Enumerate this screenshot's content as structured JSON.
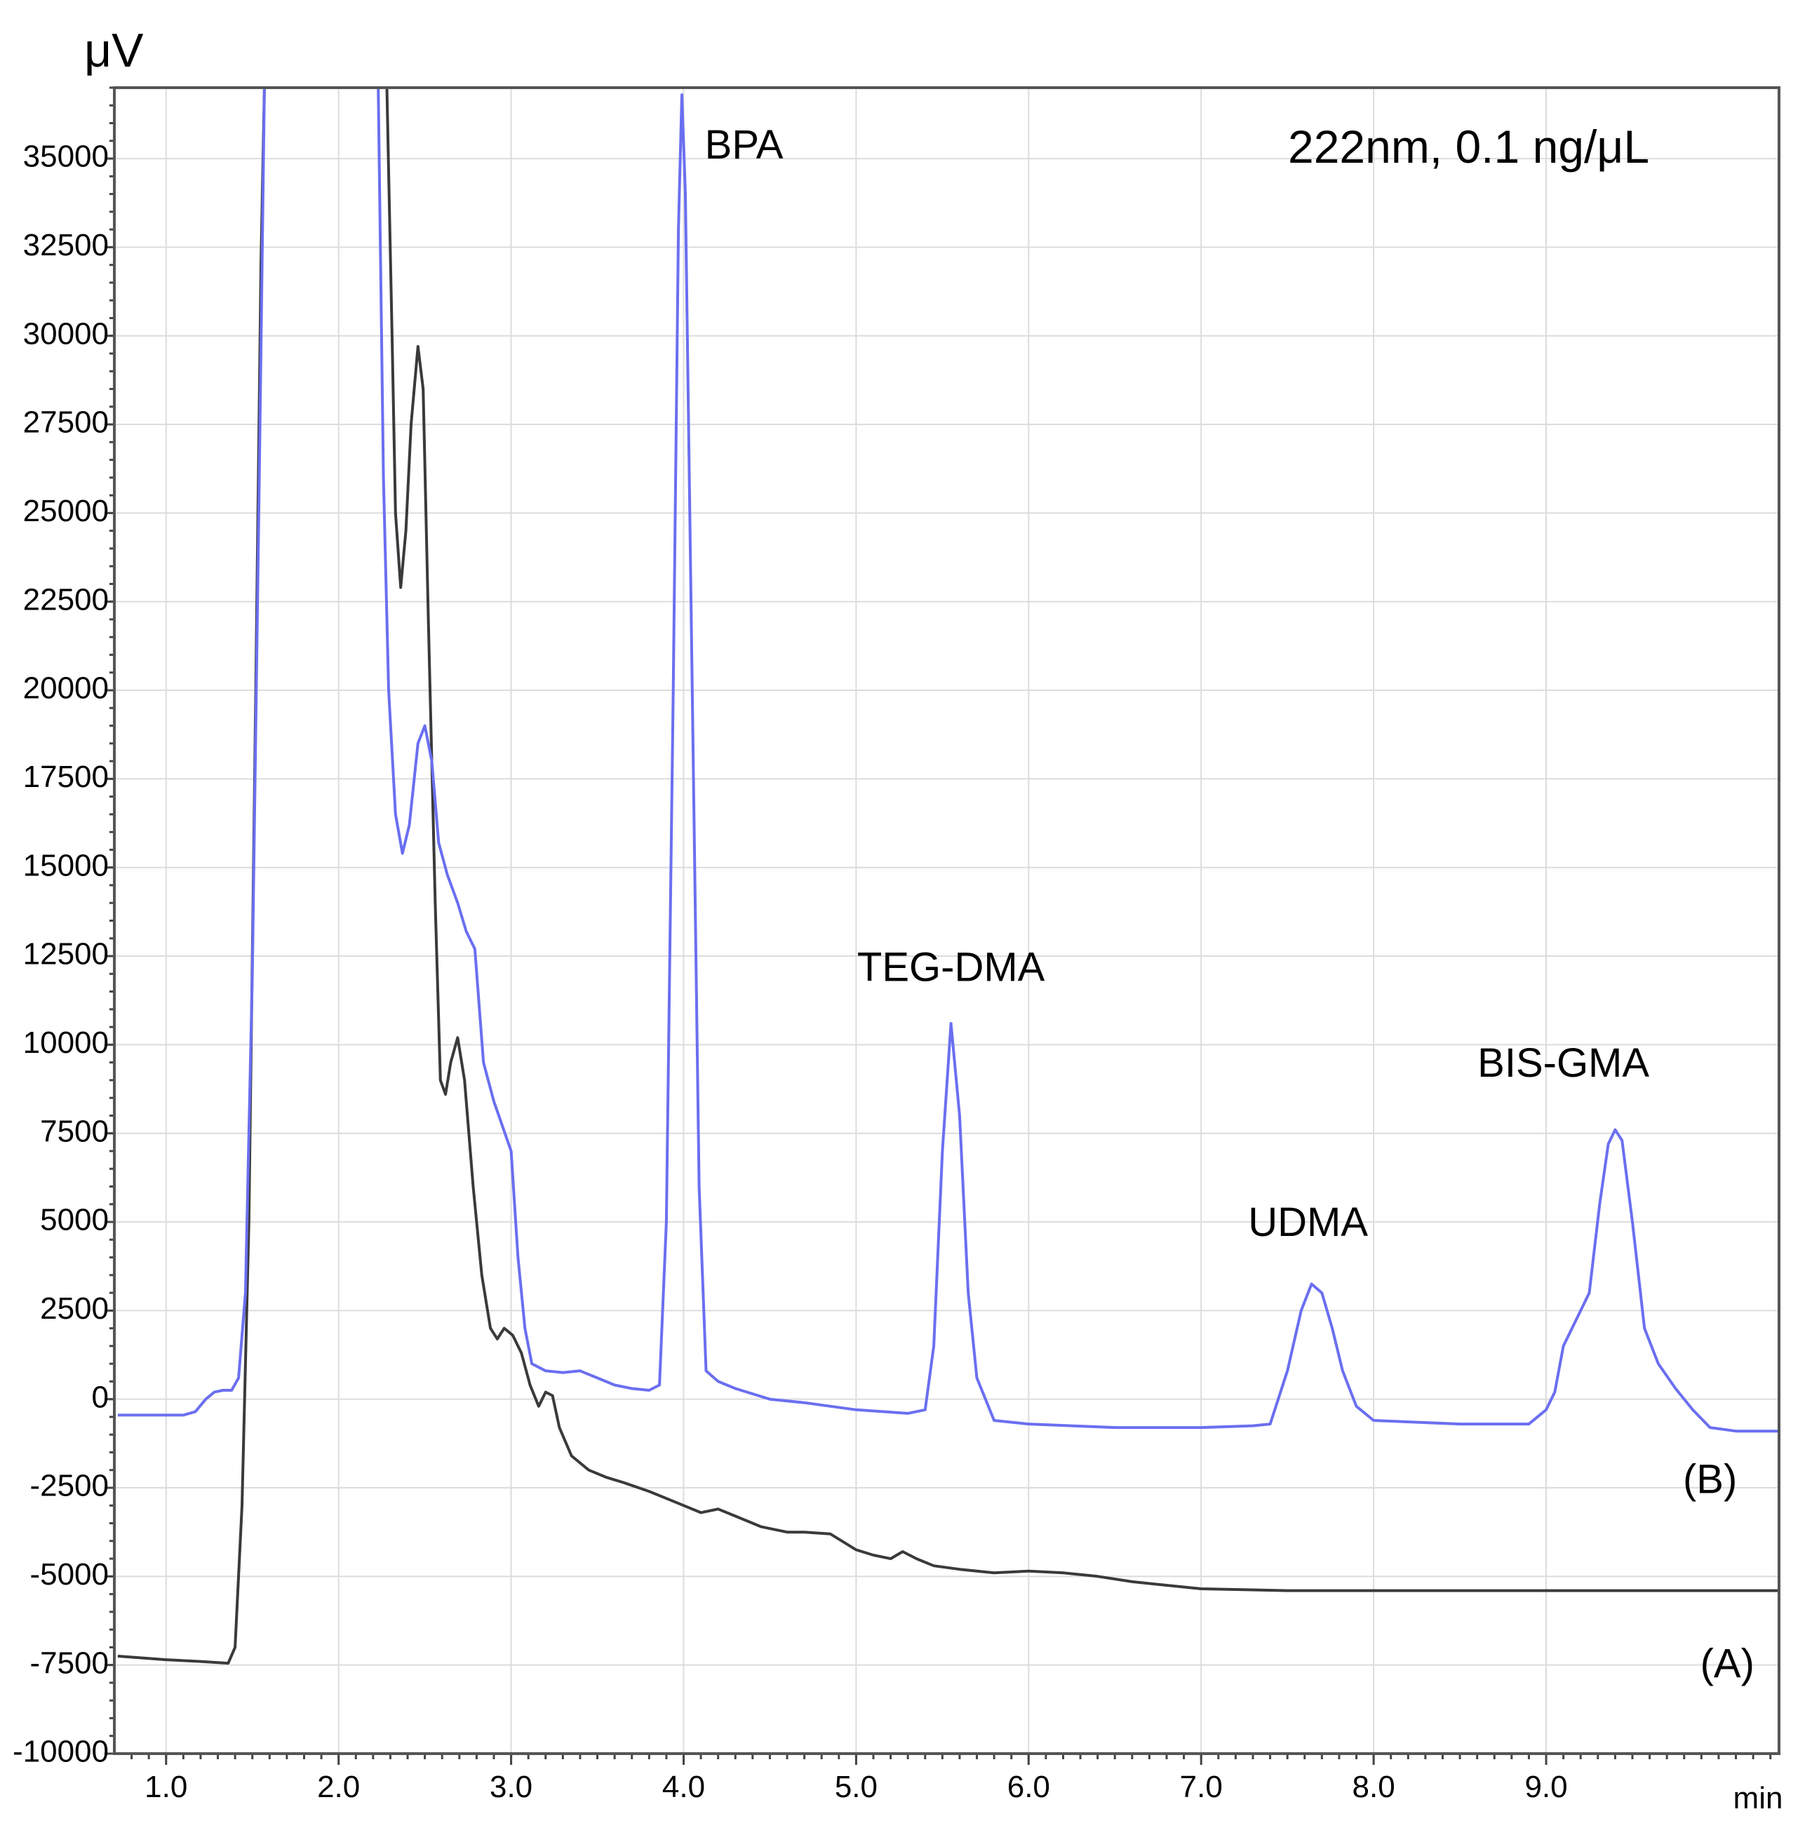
{
  "chart_data": {
    "type": "line",
    "title": "",
    "annotation_top_right": "222nm, 0.1 ng/μL",
    "ylabel": "μV",
    "xlabel": "min",
    "xlim": [
      0.7,
      10.35
    ],
    "ylim": [
      -10000,
      37000
    ],
    "grid": true,
    "xticks": [
      1.0,
      2.0,
      3.0,
      4.0,
      5.0,
      6.0,
      7.0,
      8.0,
      9.0
    ],
    "xtick_labels": [
      "1.0",
      "2.0",
      "3.0",
      "4.0",
      "5.0",
      "6.0",
      "7.0",
      "8.0",
      "9.0"
    ],
    "yticks": [
      35000,
      32500,
      30000,
      27500,
      25000,
      22500,
      20000,
      17500,
      15000,
      12500,
      10000,
      7500,
      5000,
      2500,
      0,
      -2500,
      -5000,
      -7500,
      -10000
    ],
    "ytick_labels": [
      "35000",
      "32500",
      "30000",
      "27500",
      "25000",
      "22500",
      "20000",
      "17500",
      "15000",
      "12500",
      "10000",
      "7500",
      "5000",
      "2500",
      "0",
      "-2500",
      "-5000",
      "-7500",
      "-10000"
    ],
    "series": [
      {
        "name": "(A)",
        "color": "#3a3a3a",
        "points": [
          [
            0.72,
            -7250
          ],
          [
            1.0,
            -7350
          ],
          [
            1.2,
            -7400
          ],
          [
            1.36,
            -7450
          ],
          [
            1.4,
            -7000
          ],
          [
            1.44,
            -3000
          ],
          [
            1.48,
            5000
          ],
          [
            1.52,
            20000
          ],
          [
            1.55,
            32000
          ],
          [
            1.57,
            37000
          ],
          [
            2.28,
            37000
          ],
          [
            2.31,
            30000
          ],
          [
            2.33,
            25000
          ],
          [
            2.36,
            22900
          ],
          [
            2.39,
            24500
          ],
          [
            2.42,
            27500
          ],
          [
            2.46,
            29700
          ],
          [
            2.49,
            28500
          ],
          [
            2.52,
            22000
          ],
          [
            2.56,
            14000
          ],
          [
            2.59,
            9000
          ],
          [
            2.62,
            8600
          ],
          [
            2.65,
            9500
          ],
          [
            2.69,
            10200
          ],
          [
            2.73,
            9000
          ],
          [
            2.78,
            6000
          ],
          [
            2.83,
            3500
          ],
          [
            2.88,
            2000
          ],
          [
            2.92,
            1700
          ],
          [
            2.96,
            2000
          ],
          [
            3.01,
            1800
          ],
          [
            3.06,
            1300
          ],
          [
            3.11,
            400
          ],
          [
            3.16,
            -200
          ],
          [
            3.2,
            200
          ],
          [
            3.24,
            100
          ],
          [
            3.28,
            -800
          ],
          [
            3.35,
            -1600
          ],
          [
            3.45,
            -2000
          ],
          [
            3.55,
            -2200
          ],
          [
            3.65,
            -2350
          ],
          [
            3.8,
            -2600
          ],
          [
            3.95,
            -2900
          ],
          [
            4.1,
            -3200
          ],
          [
            4.2,
            -3100
          ],
          [
            4.3,
            -3300
          ],
          [
            4.45,
            -3600
          ],
          [
            4.6,
            -3750
          ],
          [
            4.7,
            -3750
          ],
          [
            4.85,
            -3800
          ],
          [
            5.0,
            -4250
          ],
          [
            5.1,
            -4400
          ],
          [
            5.2,
            -4500
          ],
          [
            5.27,
            -4300
          ],
          [
            5.35,
            -4500
          ],
          [
            5.45,
            -4700
          ],
          [
            5.6,
            -4800
          ],
          [
            5.8,
            -4900
          ],
          [
            6.0,
            -4850
          ],
          [
            6.2,
            -4900
          ],
          [
            6.4,
            -5000
          ],
          [
            6.6,
            -5150
          ],
          [
            6.8,
            -5250
          ],
          [
            7.0,
            -5350
          ],
          [
            7.5,
            -5400
          ],
          [
            8.0,
            -5400
          ],
          [
            8.5,
            -5400
          ],
          [
            9.0,
            -5400
          ],
          [
            9.5,
            -5400
          ],
          [
            10.0,
            -5400
          ],
          [
            10.35,
            -5400
          ]
        ]
      },
      {
        "name": "(B)",
        "color": "#6a6ff0",
        "points": [
          [
            0.72,
            -450
          ],
          [
            0.9,
            -450
          ],
          [
            1.1,
            -450
          ],
          [
            1.17,
            -350
          ],
          [
            1.23,
            0
          ],
          [
            1.28,
            200
          ],
          [
            1.33,
            250
          ],
          [
            1.38,
            250
          ],
          [
            1.42,
            600
          ],
          [
            1.46,
            3000
          ],
          [
            1.5,
            12000
          ],
          [
            1.54,
            26000
          ],
          [
            1.57,
            37000
          ],
          [
            2.23,
            37000
          ],
          [
            2.26,
            26000
          ],
          [
            2.29,
            20000
          ],
          [
            2.33,
            16500
          ],
          [
            2.37,
            15400
          ],
          [
            2.41,
            16200
          ],
          [
            2.46,
            18500
          ],
          [
            2.5,
            19000
          ],
          [
            2.54,
            18000
          ],
          [
            2.58,
            15700
          ],
          [
            2.63,
            14800
          ],
          [
            2.69,
            14000
          ],
          [
            2.74,
            13200
          ],
          [
            2.79,
            12700
          ],
          [
            2.84,
            9500
          ],
          [
            2.9,
            8400
          ],
          [
            2.95,
            7700
          ],
          [
            3.0,
            7000
          ],
          [
            3.04,
            4000
          ],
          [
            3.08,
            2000
          ],
          [
            3.12,
            1000
          ],
          [
            3.2,
            800
          ],
          [
            3.3,
            750
          ],
          [
            3.4,
            800
          ],
          [
            3.5,
            600
          ],
          [
            3.6,
            400
          ],
          [
            3.7,
            300
          ],
          [
            3.8,
            250
          ],
          [
            3.86,
            400
          ],
          [
            3.9,
            5000
          ],
          [
            3.94,
            20000
          ],
          [
            3.97,
            33000
          ],
          [
            3.99,
            36800
          ],
          [
            4.01,
            34000
          ],
          [
            4.05,
            20000
          ],
          [
            4.09,
            6000
          ],
          [
            4.13,
            800
          ],
          [
            4.2,
            500
          ],
          [
            4.3,
            300
          ],
          [
            4.5,
            0
          ],
          [
            4.7,
            -100
          ],
          [
            5.0,
            -300
          ],
          [
            5.3,
            -400
          ],
          [
            5.4,
            -300
          ],
          [
            5.45,
            1500
          ],
          [
            5.5,
            7000
          ],
          [
            5.55,
            10600
          ],
          [
            5.6,
            8000
          ],
          [
            5.65,
            3000
          ],
          [
            5.7,
            600
          ],
          [
            5.8,
            -600
          ],
          [
            6.0,
            -700
          ],
          [
            6.5,
            -800
          ],
          [
            7.0,
            -800
          ],
          [
            7.3,
            -750
          ],
          [
            7.4,
            -700
          ],
          [
            7.5,
            800
          ],
          [
            7.58,
            2500
          ],
          [
            7.64,
            3250
          ],
          [
            7.7,
            3000
          ],
          [
            7.76,
            2000
          ],
          [
            7.82,
            800
          ],
          [
            7.9,
            -200
          ],
          [
            8.0,
            -600
          ],
          [
            8.5,
            -700
          ],
          [
            8.9,
            -700
          ],
          [
            9.0,
            -300
          ],
          [
            9.05,
            200
          ],
          [
            9.1,
            1500
          ],
          [
            9.18,
            2300
          ],
          [
            9.25,
            3000
          ],
          [
            9.31,
            5500
          ],
          [
            9.36,
            7200
          ],
          [
            9.4,
            7600
          ],
          [
            9.44,
            7300
          ],
          [
            9.5,
            5000
          ],
          [
            9.57,
            2000
          ],
          [
            9.65,
            1000
          ],
          [
            9.75,
            300
          ],
          [
            9.85,
            -300
          ],
          [
            9.95,
            -800
          ],
          [
            10.1,
            -900
          ],
          [
            10.35,
            -900
          ]
        ]
      }
    ],
    "annotations": [
      {
        "text": "BPA",
        "x": 4.35,
        "y": 35000
      },
      {
        "text": "TEG-DMA",
        "x": 5.55,
        "y": 11800
      },
      {
        "text": "UDMA",
        "x": 7.62,
        "y": 4600
      },
      {
        "text": "BIS-GMA",
        "x": 9.1,
        "y": 9100
      },
      {
        "text": "(B)",
        "x": 9.95,
        "y": -2650
      },
      {
        "text": "(A)",
        "x": 10.05,
        "y": -7850
      }
    ]
  }
}
